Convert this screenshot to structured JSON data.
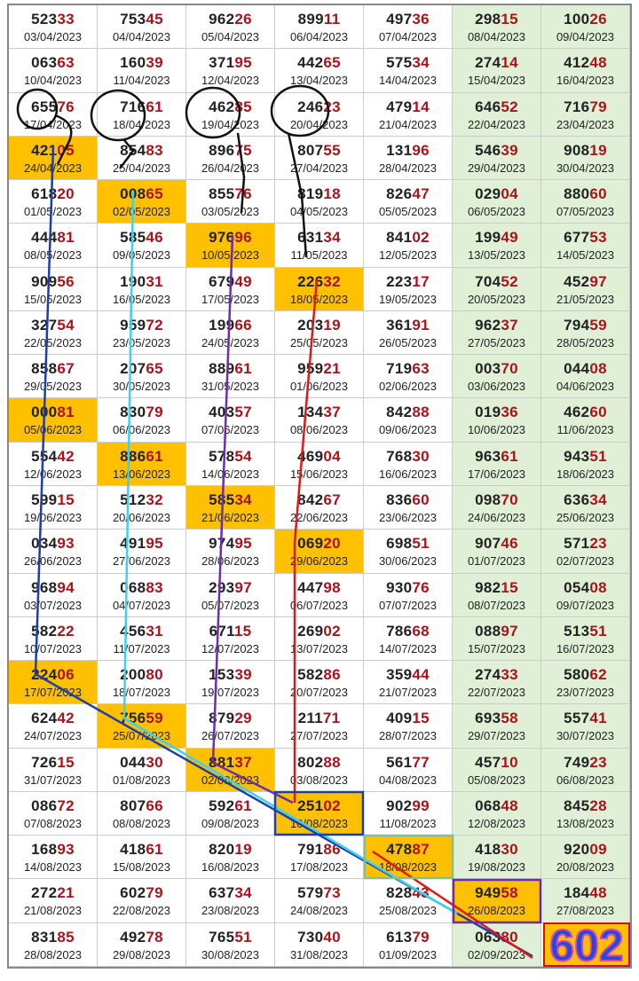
{
  "table": {
    "rows": [
      [
        {
          "n": [
            "523",
            "33"
          ],
          "date": "03/04/2023"
        },
        {
          "n": [
            "753",
            "45"
          ],
          "date": "04/04/2023"
        },
        {
          "n": [
            "962",
            "26"
          ],
          "date": "05/04/2023"
        },
        {
          "n": [
            "899",
            "11"
          ],
          "date": "06/04/2023"
        },
        {
          "n": [
            "497",
            "36"
          ],
          "date": "07/04/2023"
        },
        {
          "n": [
            "298",
            "15"
          ],
          "date": "08/04/2023"
        },
        {
          "n": [
            "100",
            "26"
          ],
          "date": "09/04/2023"
        }
      ],
      [
        {
          "n": [
            "063",
            "63"
          ],
          "date": "10/04/2023"
        },
        {
          "n": [
            "160",
            "39"
          ],
          "date": "11/04/2023"
        },
        {
          "n": [
            "371",
            "95"
          ],
          "date": "12/04/2023"
        },
        {
          "n": [
            "442",
            "65"
          ],
          "date": "13/04/2023"
        },
        {
          "n": [
            "575",
            "34"
          ],
          "date": "14/04/2023"
        },
        {
          "n": [
            "274",
            "14"
          ],
          "date": "15/04/2023"
        },
        {
          "n": [
            "412",
            "48"
          ],
          "date": "16/04/2023"
        }
      ],
      [
        {
          "n": [
            "655",
            "76"
          ],
          "date": "17/04/2023"
        },
        {
          "n": [
            "716",
            "61"
          ],
          "date": "18/04/2023"
        },
        {
          "n": [
            "462",
            "85"
          ],
          "date": "19/04/2023"
        },
        {
          "n": [
            "246",
            "23"
          ],
          "date": "20/04/2023"
        },
        {
          "n": [
            "479",
            "14"
          ],
          "date": "21/04/2023"
        },
        {
          "n": [
            "646",
            "52"
          ],
          "date": "22/04/2023"
        },
        {
          "n": [
            "716",
            "79"
          ],
          "date": "23/04/2023"
        }
      ],
      [
        {
          "n": [
            "421",
            "05"
          ],
          "date": "24/04/2023",
          "hl": true
        },
        {
          "n": [
            "854",
            "83"
          ],
          "date": "25/04/2023"
        },
        {
          "n": [
            "896",
            "75"
          ],
          "date": "26/04/2023"
        },
        {
          "n": [
            "807",
            "55"
          ],
          "date": "27/04/2023"
        },
        {
          "n": [
            "131",
            "96"
          ],
          "date": "28/04/2023"
        },
        {
          "n": [
            "546",
            "39"
          ],
          "date": "29/04/2023"
        },
        {
          "n": [
            "908",
            "19"
          ],
          "date": "30/04/2023"
        }
      ],
      [
        {
          "n": [
            "618",
            "20"
          ],
          "date": "01/05/2023"
        },
        {
          "n": [
            "008",
            "65"
          ],
          "date": "02/05/2023",
          "hl": true
        },
        {
          "n": [
            "855",
            "76"
          ],
          "date": "03/05/2023"
        },
        {
          "n": [
            "819",
            "18"
          ],
          "date": "04/05/2023"
        },
        {
          "n": [
            "826",
            "47"
          ],
          "date": "05/05/2023"
        },
        {
          "n": [
            "029",
            "04"
          ],
          "date": "06/05/2023"
        },
        {
          "n": [
            "880",
            "60"
          ],
          "date": "07/05/2023"
        }
      ],
      [
        {
          "n": [
            "444",
            "81"
          ],
          "date": "08/05/2023"
        },
        {
          "n": [
            "585",
            "46"
          ],
          "date": "09/05/2023"
        },
        {
          "n": [
            "976",
            "96"
          ],
          "date": "10/05/2023",
          "hl": true
        },
        {
          "n": [
            "631",
            "34"
          ],
          "date": "11/05/2023"
        },
        {
          "n": [
            "841",
            "02"
          ],
          "date": "12/05/2023"
        },
        {
          "n": [
            "199",
            "49"
          ],
          "date": "13/05/2023"
        },
        {
          "n": [
            "677",
            "53"
          ],
          "date": "14/05/2023"
        }
      ],
      [
        {
          "n": [
            "909",
            "56"
          ],
          "date": "15/05/2023"
        },
        {
          "n": [
            "190",
            "31"
          ],
          "date": "16/05/2023"
        },
        {
          "n": [
            "679",
            "49"
          ],
          "date": "17/05/2023"
        },
        {
          "n": [
            "226",
            "32"
          ],
          "date": "18/05/2023",
          "hl": true
        },
        {
          "n": [
            "223",
            "17"
          ],
          "date": "19/05/2023"
        },
        {
          "n": [
            "704",
            "52"
          ],
          "date": "20/05/2023"
        },
        {
          "n": [
            "452",
            "97"
          ],
          "date": "21/05/2023"
        }
      ],
      [
        {
          "n": [
            "327",
            "54"
          ],
          "date": "22/05/2023"
        },
        {
          "n": [
            "959",
            "72"
          ],
          "date": "23/05/2023"
        },
        {
          "n": [
            "199",
            "66"
          ],
          "date": "24/05/2023"
        },
        {
          "n": [
            "203",
            "19"
          ],
          "date": "25/05/2023"
        },
        {
          "n": [
            "361",
            "91"
          ],
          "date": "26/05/2023"
        },
        {
          "n": [
            "962",
            "37"
          ],
          "date": "27/05/2023"
        },
        {
          "n": [
            "794",
            "59"
          ],
          "date": "28/05/2023"
        }
      ],
      [
        {
          "n": [
            "858",
            "67"
          ],
          "date": "29/05/2023"
        },
        {
          "n": [
            "207",
            "65"
          ],
          "date": "30/05/2023"
        },
        {
          "n": [
            "889",
            "61"
          ],
          "date": "31/05/2023"
        },
        {
          "n": [
            "959",
            "21"
          ],
          "date": "01/06/2023"
        },
        {
          "n": [
            "719",
            "63"
          ],
          "date": "02/06/2023"
        },
        {
          "n": [
            "003",
            "70"
          ],
          "date": "03/06/2023"
        },
        {
          "n": [
            "044",
            "08"
          ],
          "date": "04/06/2023"
        }
      ],
      [
        {
          "n": [
            "000",
            "81"
          ],
          "date": "05/06/2023",
          "hl": true
        },
        {
          "n": [
            "830",
            "79"
          ],
          "date": "06/06/2023"
        },
        {
          "n": [
            "403",
            "57"
          ],
          "date": "07/06/2023"
        },
        {
          "n": [
            "134",
            "37"
          ],
          "date": "08/06/2023"
        },
        {
          "n": [
            "842",
            "88"
          ],
          "date": "09/06/2023"
        },
        {
          "n": [
            "019",
            "36"
          ],
          "date": "10/06/2023"
        },
        {
          "n": [
            "462",
            "60"
          ],
          "date": "11/06/2023"
        }
      ],
      [
        {
          "n": [
            "554",
            "42"
          ],
          "date": "12/06/2023"
        },
        {
          "n": [
            "886",
            "61"
          ],
          "date": "13/06/2023",
          "hl": true
        },
        {
          "n": [
            "578",
            "54"
          ],
          "date": "14/06/2023"
        },
        {
          "n": [
            "469",
            "04"
          ],
          "date": "15/06/2023"
        },
        {
          "n": [
            "768",
            "30"
          ],
          "date": "16/06/2023"
        },
        {
          "n": [
            "963",
            "61"
          ],
          "date": "17/06/2023"
        },
        {
          "n": [
            "943",
            "51"
          ],
          "date": "18/06/2023"
        }
      ],
      [
        {
          "n": [
            "599",
            "15"
          ],
          "date": "19/06/2023"
        },
        {
          "n": [
            "512",
            "32"
          ],
          "date": "20/06/2023"
        },
        {
          "n": [
            "585",
            "34"
          ],
          "date": "21/06/2023",
          "hl": true
        },
        {
          "n": [
            "842",
            "67"
          ],
          "date": "22/06/2023"
        },
        {
          "n": [
            "836",
            "60"
          ],
          "date": "23/06/2023"
        },
        {
          "n": [
            "098",
            "70"
          ],
          "date": "24/06/2023"
        },
        {
          "n": [
            "636",
            "34"
          ],
          "date": "25/06/2023"
        }
      ],
      [
        {
          "n": [
            "034",
            "93"
          ],
          "date": "26/06/2023"
        },
        {
          "n": [
            "491",
            "95"
          ],
          "date": "27/06/2023"
        },
        {
          "n": [
            "974",
            "95"
          ],
          "date": "28/06/2023"
        },
        {
          "n": [
            "069",
            "20"
          ],
          "date": "29/06/2023",
          "hl": true
        },
        {
          "n": [
            "698",
            "51"
          ],
          "date": "30/06/2023"
        },
        {
          "n": [
            "907",
            "46"
          ],
          "date": "01/07/2023"
        },
        {
          "n": [
            "571",
            "23"
          ],
          "date": "02/07/2023"
        }
      ],
      [
        {
          "n": [
            "968",
            "94"
          ],
          "date": "03/07/2023"
        },
        {
          "n": [
            "068",
            "83"
          ],
          "date": "04/07/2023"
        },
        {
          "n": [
            "293",
            "97"
          ],
          "date": "05/07/2023"
        },
        {
          "n": [
            "447",
            "98"
          ],
          "date": "06/07/2023"
        },
        {
          "n": [
            "930",
            "76"
          ],
          "date": "07/07/2023"
        },
        {
          "n": [
            "982",
            "15"
          ],
          "date": "08/07/2023"
        },
        {
          "n": [
            "054",
            "08"
          ],
          "date": "09/07/2023"
        }
      ],
      [
        {
          "n": [
            "582",
            "22"
          ],
          "date": "10/07/2023"
        },
        {
          "n": [
            "456",
            "31"
          ],
          "date": "11/07/2023"
        },
        {
          "n": [
            "671",
            "15"
          ],
          "date": "12/07/2023"
        },
        {
          "n": [
            "269",
            "02"
          ],
          "date": "13/07/2023"
        },
        {
          "n": [
            "786",
            "68"
          ],
          "date": "14/07/2023"
        },
        {
          "n": [
            "088",
            "97"
          ],
          "date": "15/07/2023"
        },
        {
          "n": [
            "513",
            "51"
          ],
          "date": "16/07/2023"
        }
      ],
      [
        {
          "n": [
            "224",
            "06"
          ],
          "date": "17/07/2023",
          "hl": true
        },
        {
          "n": [
            "200",
            "80"
          ],
          "date": "18/07/2023"
        },
        {
          "n": [
            "153",
            "39"
          ],
          "date": "19/07/2023"
        },
        {
          "n": [
            "582",
            "86"
          ],
          "date": "20/07/2023"
        },
        {
          "n": [
            "359",
            "44"
          ],
          "date": "21/07/2023"
        },
        {
          "n": [
            "274",
            "33"
          ],
          "date": "22/07/2023"
        },
        {
          "n": [
            "580",
            "62"
          ],
          "date": "23/07/2023"
        }
      ],
      [
        {
          "n": [
            "624",
            "42"
          ],
          "date": "24/07/2023"
        },
        {
          "n": [
            "756",
            "59"
          ],
          "date": "25/07/2023",
          "hl": true
        },
        {
          "n": [
            "879",
            "29"
          ],
          "date": "26/07/2023"
        },
        {
          "n": [
            "211",
            "71"
          ],
          "date": "27/07/2023"
        },
        {
          "n": [
            "409",
            "15"
          ],
          "date": "28/07/2023"
        },
        {
          "n": [
            "693",
            "58"
          ],
          "date": "29/07/2023"
        },
        {
          "n": [
            "557",
            "41"
          ],
          "date": "30/07/2023"
        }
      ],
      [
        {
          "n": [
            "726",
            "15"
          ],
          "date": "31/07/2023"
        },
        {
          "n": [
            "044",
            "30"
          ],
          "date": "01/08/2023"
        },
        {
          "n": [
            "881",
            "37"
          ],
          "date": "02/08/2023",
          "hl": true
        },
        {
          "n": [
            "802",
            "88"
          ],
          "date": "03/08/2023"
        },
        {
          "n": [
            "561",
            "77"
          ],
          "date": "04/08/2023"
        },
        {
          "n": [
            "457",
            "10"
          ],
          "date": "05/08/2023"
        },
        {
          "n": [
            "749",
            "23"
          ],
          "date": "06/08/2023"
        }
      ],
      [
        {
          "n": [
            "086",
            "72"
          ],
          "date": "07/08/2023"
        },
        {
          "n": [
            "807",
            "66"
          ],
          "date": "08/08/2023"
        },
        {
          "n": [
            "592",
            "61"
          ],
          "date": "09/08/2023"
        },
        {
          "n": [
            "251",
            "02"
          ],
          "date": "10/08/2023",
          "hl": true
        },
        {
          "n": [
            "902",
            "99"
          ],
          "date": "11/08/2023"
        },
        {
          "n": [
            "068",
            "48"
          ],
          "date": "12/08/2023"
        },
        {
          "n": [
            "845",
            "28"
          ],
          "date": "13/08/2023"
        }
      ],
      [
        {
          "n": [
            "168",
            "93"
          ],
          "date": "14/08/2023"
        },
        {
          "n": [
            "418",
            "61"
          ],
          "date": "15/08/2023"
        },
        {
          "n": [
            "820",
            "19"
          ],
          "date": "16/08/2023"
        },
        {
          "n": [
            "791",
            "86"
          ],
          "date": "17/08/2023"
        },
        {
          "n": [
            "478",
            "87"
          ],
          "date": "18/08/2023",
          "hl": true
        },
        {
          "n": [
            "418",
            "30"
          ],
          "date": "19/08/2023"
        },
        {
          "n": [
            "920",
            "09"
          ],
          "date": "20/08/2023"
        }
      ],
      [
        {
          "n": [
            "272",
            "21"
          ],
          "date": "21/08/2023"
        },
        {
          "n": [
            "602",
            "79"
          ],
          "date": "22/08/2023"
        },
        {
          "n": [
            "637",
            "34"
          ],
          "date": "23/08/2023"
        },
        {
          "n": [
            "579",
            "73"
          ],
          "date": "24/08/2023"
        },
        {
          "n": [
            "828",
            "43"
          ],
          "date": "25/08/2023"
        },
        {
          "n": [
            "949",
            "58"
          ],
          "date": "26/08/2023",
          "hl": true
        },
        {
          "n": [
            "184",
            "48"
          ],
          "date": "27/08/2023"
        }
      ],
      [
        {
          "n": [
            "831",
            "85"
          ],
          "date": "28/08/2023"
        },
        {
          "n": [
            "492",
            "78"
          ],
          "date": "29/08/2023"
        },
        {
          "n": [
            "765",
            "51"
          ],
          "date": "30/08/2023"
        },
        {
          "n": [
            "730",
            "40"
          ],
          "date": "31/08/2023"
        },
        {
          "n": [
            "613",
            "79"
          ],
          "date": "01/09/2023"
        },
        {
          "n": [
            "063",
            "80"
          ],
          "date": "02/09/2023"
        }
      ]
    ]
  },
  "annotation": "602"
}
